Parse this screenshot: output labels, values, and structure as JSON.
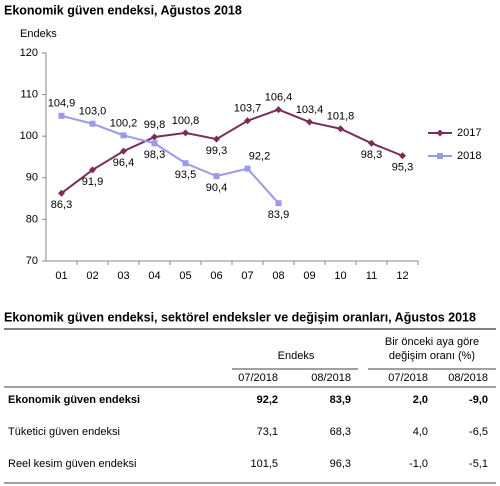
{
  "chart_data": {
    "type": "line",
    "title": "Ekonomik güven endeksi, Ağustos 2018",
    "ylabel": "Endeks",
    "categories": [
      "01",
      "02",
      "03",
      "04",
      "05",
      "06",
      "07",
      "08",
      "09",
      "10",
      "11",
      "12"
    ],
    "series": [
      {
        "name": "2017",
        "color": "#7b2d5a",
        "marker": "diamond",
        "values": [
          86.3,
          91.9,
          96.4,
          99.8,
          100.8,
          99.3,
          103.7,
          106.4,
          103.4,
          101.8,
          98.3,
          95.3
        ],
        "value_labels": [
          "86,3",
          "91,9",
          "96,4",
          "99,8",
          "100,8",
          "99,3",
          "103,7",
          "106,4",
          "103,4",
          "101,8",
          "98,3",
          "95,3"
        ]
      },
      {
        "name": "2018",
        "color": "#9a9ae8",
        "marker": "square",
        "values": [
          104.9,
          103.0,
          100.2,
          98.3,
          93.5,
          90.4,
          92.2,
          83.9,
          null,
          null,
          null,
          null
        ],
        "value_labels": [
          "104,9",
          "103,0",
          "100,2",
          "98,3",
          "93,5",
          "90,4",
          "92,2",
          "83,9",
          null,
          null,
          null,
          null
        ]
      }
    ],
    "ylim": [
      70,
      120
    ],
    "yticks": [
      70,
      80,
      90,
      100,
      110,
      120
    ],
    "grid": false,
    "legend": "right"
  },
  "table": {
    "title": "Ekonomik güven endeksi, sektörel endeksler ve değişim oranları, Ağustos 2018",
    "group_headers": [
      "Endeks",
      [
        "Bir önceki aya göre",
        "değişim oranı (%)"
      ]
    ],
    "columns": [
      "07/2018",
      "08/2018",
      "07/2018",
      "08/2018"
    ],
    "rows": [
      [
        "Ekonomik güven endeksi",
        "92,2",
        "83,9",
        "2,0",
        "-9,0"
      ],
      [
        "Tüketici güven endeksi",
        "73,1",
        "68,3",
        "4,0",
        "-6,5"
      ],
      [
        "Reel kesim güven endeksi",
        "101,5",
        "96,3",
        "-1,0",
        "-5,1"
      ]
    ]
  }
}
